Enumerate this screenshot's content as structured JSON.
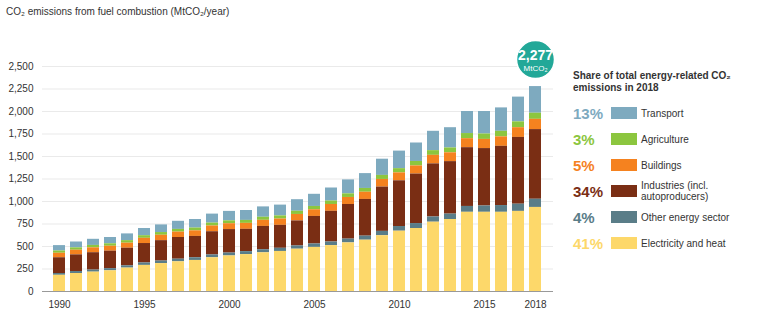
{
  "chart_data": {
    "type": "bar",
    "stacked": true,
    "grid": true,
    "title": "CO₂ emissions from fuel combustion (MtCO₂/year)",
    "legend_title": "Share of total energy-related CO₂ emissions in 2018",
    "x": [
      1990,
      1991,
      1992,
      1993,
      1994,
      1995,
      1996,
      1997,
      1998,
      1999,
      2000,
      2001,
      2002,
      2003,
      2004,
      2005,
      2006,
      2007,
      2008,
      2009,
      2010,
      2011,
      2012,
      2013,
      2014,
      2015,
      2016,
      2017,
      2018
    ],
    "xticks": [
      1990,
      1995,
      2000,
      2005,
      2010,
      2015,
      2018
    ],
    "ylim": [
      0,
      2500
    ],
    "yticks": [
      0,
      250,
      500,
      750,
      {
        "value": 1000,
        "label": "1,000"
      },
      {
        "value": 1250,
        "label": "1,250"
      },
      {
        "value": 1500,
        "label": "1,500"
      },
      {
        "value": 1750,
        "label": "1,750"
      },
      {
        "value": 2000,
        "label": "2,000"
      },
      {
        "value": 2250,
        "label": "2,250"
      },
      {
        "value": 2500,
        "label": "2,500"
      }
    ],
    "annotation": {
      "x": 2018,
      "value": 2277,
      "label": "2,277",
      "unit": "MtCO₂"
    },
    "series": [
      {
        "name": "Transport",
        "share": "13%",
        "color": "#7eaabf",
        "values": [
          60,
          65,
          68,
          70,
          75,
          80,
          85,
          90,
          95,
          100,
          105,
          110,
          115,
          120,
          128,
          135,
          145,
          155,
          165,
          180,
          195,
          205,
          215,
          225,
          245,
          250,
          260,
          275,
          296
        ]
      },
      {
        "name": "Agriculture",
        "share": "3%",
        "color": "#8cc63f",
        "values": [
          25,
          26,
          27,
          27,
          28,
          29,
          30,
          30,
          31,
          32,
          32,
          33,
          34,
          35,
          36,
          37,
          38,
          40,
          42,
          45,
          47,
          50,
          52,
          54,
          57,
          60,
          62,
          65,
          68
        ]
      },
      {
        "name": "Buildings",
        "share": "5%",
        "color": "#f5821f",
        "values": [
          50,
          52,
          54,
          55,
          56,
          58,
          60,
          60,
          62,
          64,
          65,
          66,
          68,
          70,
          72,
          74,
          76,
          78,
          80,
          85,
          88,
          90,
          95,
          98,
          100,
          102,
          105,
          108,
          114
        ]
      },
      {
        "name": "Industries (incl. autoproducers)",
        "share": "34%",
        "color": "#7a2e14",
        "values": [
          175,
          185,
          193,
          194,
          196,
          216,
          227,
          241,
          237,
          258,
          261,
          248,
          259,
          255,
          278,
          306,
          341,
          385,
          408,
          492,
          508,
          550,
          590,
          583,
          653,
          638,
          658,
          742,
          774
        ]
      },
      {
        "name": "Other energy sector",
        "share": "4%",
        "color": "#5a7d88",
        "values": [
          20,
          22,
          23,
          24,
          25,
          27,
          28,
          29,
          30,
          31,
          32,
          33,
          34,
          35,
          36,
          38,
          40,
          42,
          45,
          48,
          52,
          55,
          58,
          60,
          65,
          70,
          75,
          80,
          91
        ]
      },
      {
        "name": "Electricity and heat",
        "share": "41%",
        "color": "#fdd86a",
        "values": [
          180,
          200,
          215,
          230,
          260,
          290,
          310,
          330,
          345,
          375,
          395,
          410,
          430,
          445,
          470,
          490,
          510,
          540,
          570,
          620,
          670,
          700,
          770,
          800,
          880,
          880,
          880,
          890,
          934
        ]
      }
    ]
  }
}
